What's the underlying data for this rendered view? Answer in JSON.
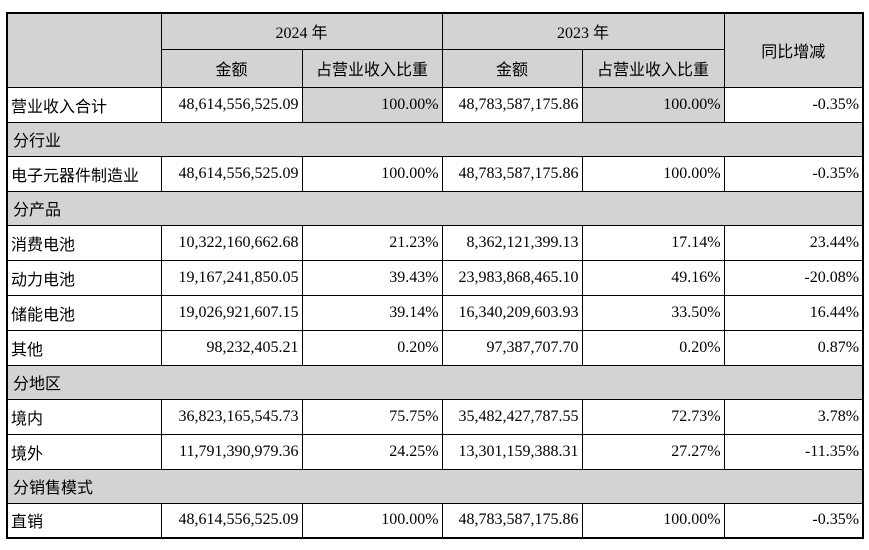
{
  "table": {
    "header": {
      "corner": "",
      "year_2024": "2024 年",
      "year_2023": "2023 年",
      "yoy": "同比增减",
      "amount_2024": "金额",
      "share_2024": "占营业收入比重",
      "amount_2023": "金额",
      "share_2023": "占营业收入比重"
    },
    "rows": [
      {
        "type": "data",
        "label": "营业收入合计",
        "amount_2024": "48,614,556,525.09",
        "share_2024": "100.00%",
        "amount_2023": "48,783,587,175.86",
        "share_2023": "100.00%",
        "yoy": "-0.35%",
        "share_cells_shaded": true
      },
      {
        "type": "section",
        "label": "分行业"
      },
      {
        "type": "data",
        "label": "电子元器件制造业",
        "amount_2024": "48,614,556,525.09",
        "share_2024": "100.00%",
        "amount_2023": "48,783,587,175.86",
        "share_2023": "100.00%",
        "yoy": "-0.35%"
      },
      {
        "type": "section",
        "label": "分产品"
      },
      {
        "type": "data",
        "label": "消费电池",
        "amount_2024": "10,322,160,662.68",
        "share_2024": "21.23%",
        "amount_2023": "8,362,121,399.13",
        "share_2023": "17.14%",
        "yoy": "23.44%"
      },
      {
        "type": "data",
        "label": "动力电池",
        "amount_2024": "19,167,241,850.05",
        "share_2024": "39.43%",
        "amount_2023": "23,983,868,465.10",
        "share_2023": "49.16%",
        "yoy": "-20.08%"
      },
      {
        "type": "data",
        "label": "储能电池",
        "amount_2024": "19,026,921,607.15",
        "share_2024": "39.14%",
        "amount_2023": "16,340,209,603.93",
        "share_2023": "33.50%",
        "yoy": "16.44%"
      },
      {
        "type": "data",
        "label": "其他",
        "amount_2024": "98,232,405.21",
        "share_2024": "0.20%",
        "amount_2023": "97,387,707.70",
        "share_2023": "0.20%",
        "yoy": "0.87%"
      },
      {
        "type": "section",
        "label": "分地区"
      },
      {
        "type": "data",
        "label": "境内",
        "amount_2024": "36,823,165,545.73",
        "share_2024": "75.75%",
        "amount_2023": "35,482,427,787.55",
        "share_2023": "72.73%",
        "yoy": "3.78%"
      },
      {
        "type": "data",
        "label": "境外",
        "amount_2024": "11,791,390,979.36",
        "share_2024": "24.25%",
        "amount_2023": "13,301,159,388.31",
        "share_2023": "27.27%",
        "yoy": "-11.35%"
      },
      {
        "type": "section",
        "label": "分销售模式"
      },
      {
        "type": "data",
        "label": "直销",
        "amount_2024": "48,614,556,525.09",
        "share_2024": "100.00%",
        "amount_2023": "48,783,587,175.86",
        "share_2023": "100.00%",
        "yoy": "-0.35%"
      }
    ],
    "colors": {
      "header_bg": "#d3d3d3",
      "section_bg": "#d3d3d3",
      "border": "#000000",
      "text": "#000000",
      "page_bg": "#ffffff"
    }
  }
}
